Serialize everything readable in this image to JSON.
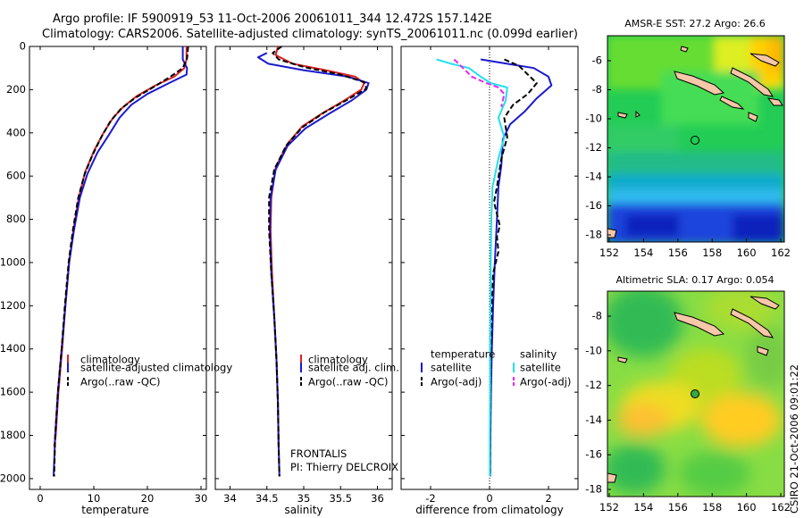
{
  "title_line1": "Argo profile: IF 5900919_53 11-Oct-2006 20061011_344 12.472S 157.142E",
  "title_line2": "Climatology: CARS2006. Satellite-adjusted climatology: synTS_20061011.nc (0.099d earlier)",
  "credit": "CSIRO 21-Oct-2006 09:01:22",
  "colors": {
    "climatology": "#e02020",
    "satellite": "#1a1ad0",
    "argo": "#000000",
    "sal_satellite": "#22e0ee",
    "sal_argo": "#ee22ee"
  },
  "chart_data": [
    {
      "type": "line",
      "xlabel": "temperature",
      "xlim": [
        -2,
        31
      ],
      "xticks": [
        0,
        10,
        20,
        30
      ],
      "ylim": [
        0,
        2050
      ],
      "yticks": [
        0,
        200,
        400,
        600,
        800,
        1000,
        1200,
        1400,
        1600,
        1800,
        2000
      ],
      "y_reversed": true,
      "legend": [
        "climatology",
        "satellite-adjusted climatology",
        "Argo(..raw -QC)"
      ],
      "series": [
        {
          "name": "climatology",
          "style": "solid",
          "color_key": "climatology",
          "points": [
            [
              27.3,
              0
            ],
            [
              27.3,
              60
            ],
            [
              26.9,
              100
            ],
            [
              25.0,
              140
            ],
            [
              21.5,
              180
            ],
            [
              18.0,
              230
            ],
            [
              15.5,
              280
            ],
            [
              13.6,
              330
            ],
            [
              11.8,
              400
            ],
            [
              10.1,
              480
            ],
            [
              8.4,
              580
            ],
            [
              7.2,
              700
            ],
            [
              6.2,
              850
            ],
            [
              5.4,
              1000
            ],
            [
              4.7,
              1200
            ],
            [
              4.1,
              1400
            ],
            [
              3.4,
              1600
            ],
            [
              2.9,
              1800
            ],
            [
              2.6,
              1850
            ]
          ]
        },
        {
          "name": "satellite-adjusted climatology",
          "style": "solid",
          "color_key": "satellite",
          "points": [
            [
              26.6,
              0
            ],
            [
              26.6,
              60
            ],
            [
              27.4,
              100
            ],
            [
              27.3,
              130
            ],
            [
              24.0,
              170
            ],
            [
              20.0,
              220
            ],
            [
              17.0,
              270
            ],
            [
              14.8,
              330
            ],
            [
              12.8,
              410
            ],
            [
              10.7,
              490
            ],
            [
              8.8,
              590
            ],
            [
              7.4,
              700
            ],
            [
              6.3,
              850
            ],
            [
              5.4,
              1000
            ],
            [
              4.7,
              1200
            ],
            [
              4.0,
              1400
            ],
            [
              3.3,
              1600
            ],
            [
              2.8,
              1800
            ],
            [
              2.5,
              1990
            ]
          ]
        },
        {
          "name": "Argo(..raw -QC)",
          "style": "dashed",
          "color_key": "argo",
          "points": [
            [
              27.6,
              0
            ],
            [
              27.4,
              55
            ],
            [
              26.6,
              100
            ],
            [
              24.3,
              140
            ],
            [
              21.0,
              190
            ],
            [
              17.6,
              240
            ],
            [
              15.0,
              290
            ],
            [
              13.0,
              350
            ],
            [
              11.4,
              420
            ],
            [
              9.8,
              500
            ],
            [
              8.3,
              590
            ],
            [
              7.1,
              700
            ],
            [
              6.1,
              850
            ],
            [
              5.3,
              1000
            ],
            [
              4.6,
              1200
            ],
            [
              4.0,
              1400
            ],
            [
              3.3,
              1600
            ],
            [
              2.8,
              1800
            ],
            [
              2.6,
              1990
            ]
          ]
        }
      ]
    },
    {
      "type": "line",
      "xlabel": "salinity",
      "xlim": [
        33.8,
        36.2
      ],
      "xticks": [
        34,
        34.5,
        35,
        35.5,
        36
      ],
      "ylim": [
        0,
        2050
      ],
      "y_reversed": true,
      "legend": [
        "climatology",
        "satellite adj. clim.",
        "Argo(..raw -QC)"
      ],
      "annotations": [
        "FRONTALIS",
        "PI: Thierry DELCROIX"
      ],
      "series": [
        {
          "name": "climatology",
          "style": "solid",
          "color_key": "climatology",
          "points": [
            [
              34.65,
              0
            ],
            [
              34.62,
              40
            ],
            [
              34.85,
              80
            ],
            [
              35.3,
              110
            ],
            [
              35.7,
              140
            ],
            [
              35.82,
              170
            ],
            [
              35.78,
              200
            ],
            [
              35.55,
              250
            ],
            [
              35.25,
              310
            ],
            [
              34.98,
              370
            ],
            [
              34.78,
              450
            ],
            [
              34.62,
              560
            ],
            [
              34.56,
              700
            ],
            [
              34.55,
              850
            ],
            [
              34.57,
              1050
            ],
            [
              34.6,
              1250
            ],
            [
              34.63,
              1450
            ],
            [
              34.65,
              1650
            ],
            [
              34.66,
              1850
            ]
          ]
        },
        {
          "name": "satellite adj. clim.",
          "style": "solid",
          "color_key": "satellite",
          "points": [
            [
              34.5,
              30
            ],
            [
              34.38,
              50
            ],
            [
              34.52,
              80
            ],
            [
              35.0,
              110
            ],
            [
              35.6,
              140
            ],
            [
              35.88,
              170
            ],
            [
              35.85,
              200
            ],
            [
              35.65,
              250
            ],
            [
              35.35,
              310
            ],
            [
              35.02,
              380
            ],
            [
              34.78,
              460
            ],
            [
              34.62,
              570
            ],
            [
              34.55,
              700
            ],
            [
              34.54,
              850
            ],
            [
              34.56,
              1050
            ],
            [
              34.6,
              1250
            ],
            [
              34.63,
              1450
            ],
            [
              34.65,
              1650
            ],
            [
              34.66,
              1850
            ],
            [
              34.67,
              1990
            ]
          ]
        },
        {
          "name": "Argo(..raw -QC)",
          "style": "dashed",
          "color_key": "argo",
          "points": [
            [
              34.7,
              0
            ],
            [
              34.58,
              30
            ],
            [
              34.66,
              60
            ],
            [
              35.0,
              95
            ],
            [
              35.5,
              130
            ],
            [
              35.82,
              165
            ],
            [
              35.85,
              195
            ],
            [
              35.6,
              245
            ],
            [
              35.28,
              305
            ],
            [
              34.98,
              375
            ],
            [
              34.76,
              460
            ],
            [
              34.6,
              570
            ],
            [
              34.53,
              700
            ],
            [
              34.53,
              850
            ],
            [
              34.56,
              1050
            ],
            [
              34.6,
              1250
            ],
            [
              34.63,
              1450
            ],
            [
              34.65,
              1650
            ],
            [
              34.66,
              1850
            ],
            [
              34.67,
              1990
            ]
          ]
        }
      ]
    },
    {
      "type": "line",
      "xlabel": "difference from climatology",
      "xlim": [
        -3.0,
        3.0
      ],
      "xticks": [
        -2,
        0,
        2
      ],
      "ylim": [
        0,
        2050
      ],
      "y_reversed": true,
      "legend_temperature_title": "temperature",
      "legend_salinity_title": "salinity",
      "legend_temperature": [
        "satellite",
        "Argo(-adj)"
      ],
      "legend_salinity": [
        "satellite",
        "Argo(-adj)"
      ],
      "series": [
        {
          "name": "temperature satellite",
          "style": "solid",
          "color_key": "satellite",
          "points": [
            [
              -0.3,
              60
            ],
            [
              0.6,
              80
            ],
            [
              1.5,
              100
            ],
            [
              2.0,
              140
            ],
            [
              2.1,
              180
            ],
            [
              1.6,
              240
            ],
            [
              1.2,
              300
            ],
            [
              0.7,
              360
            ],
            [
              0.45,
              430
            ],
            [
              0.4,
              550
            ],
            [
              0.3,
              650
            ],
            [
              0.25,
              800
            ],
            [
              0.18,
              1000
            ],
            [
              0.12,
              1200
            ],
            [
              0.08,
              1400
            ],
            [
              0.05,
              1600
            ],
            [
              0.03,
              1800
            ],
            [
              0.02,
              1990
            ]
          ]
        },
        {
          "name": "temperature Argo(-adj)",
          "style": "dashed",
          "color_key": "argo",
          "points": [
            [
              0.5,
              60
            ],
            [
              1.0,
              90
            ],
            [
              1.3,
              130
            ],
            [
              1.6,
              170
            ],
            [
              1.3,
              220
            ],
            [
              0.8,
              270
            ],
            [
              0.5,
              330
            ],
            [
              0.6,
              420
            ],
            [
              0.4,
              520
            ],
            [
              0.25,
              650
            ],
            [
              0.15,
              720
            ],
            [
              0.35,
              830
            ],
            [
              0.25,
              880
            ],
            [
              0.3,
              950
            ],
            [
              0.12,
              1050
            ],
            [
              0.08,
              1200
            ],
            [
              0.05,
              1400
            ],
            [
              0.04,
              1600
            ],
            [
              0.02,
              1800
            ],
            [
              0.02,
              1990
            ]
          ]
        },
        {
          "name": "salinity satellite",
          "style": "solid",
          "color_key": "sal_satellite",
          "points": [
            [
              -1.8,
              60
            ],
            [
              -1.3,
              80
            ],
            [
              -0.7,
              100
            ],
            [
              -0.3,
              140
            ],
            [
              0.05,
              170
            ],
            [
              0.6,
              190
            ],
            [
              0.55,
              250
            ],
            [
              0.3,
              330
            ],
            [
              0.5,
              420
            ],
            [
              0.3,
              520
            ],
            [
              0.1,
              650
            ],
            [
              0.06,
              800
            ],
            [
              0.04,
              1000
            ],
            [
              0.03,
              1200
            ],
            [
              0.02,
              1400
            ],
            [
              0.02,
              1600
            ],
            [
              0.01,
              1800
            ],
            [
              0.01,
              1990
            ]
          ]
        },
        {
          "name": "salinity Argo(-adj)",
          "style": "dashed",
          "color_key": "sal_argo",
          "points": [
            [
              -1.2,
              60
            ],
            [
              -0.9,
              100
            ],
            [
              -0.6,
              140
            ],
            [
              -0.1,
              170
            ],
            [
              0.3,
              190
            ],
            [
              0.5,
              220
            ],
            [
              0.4,
              280
            ]
          ]
        }
      ]
    }
  ],
  "maps": [
    {
      "title": "AMSR-E SST: 27.2 Argo: 26.6",
      "xticks": [
        "152",
        "154",
        "156",
        "158",
        "160",
        "162"
      ],
      "yticks": [
        "-6",
        "-8",
        "-10",
        "-12",
        "-14",
        "-16",
        "-18"
      ]
    },
    {
      "title": "Altimetric SLA: 0.17 Argo: 0.054",
      "xticks": [
        "152",
        "154",
        "156",
        "158",
        "160",
        "162"
      ],
      "yticks": [
        "-8",
        "-10",
        "-12",
        "-14",
        "-16",
        "-18"
      ]
    }
  ]
}
